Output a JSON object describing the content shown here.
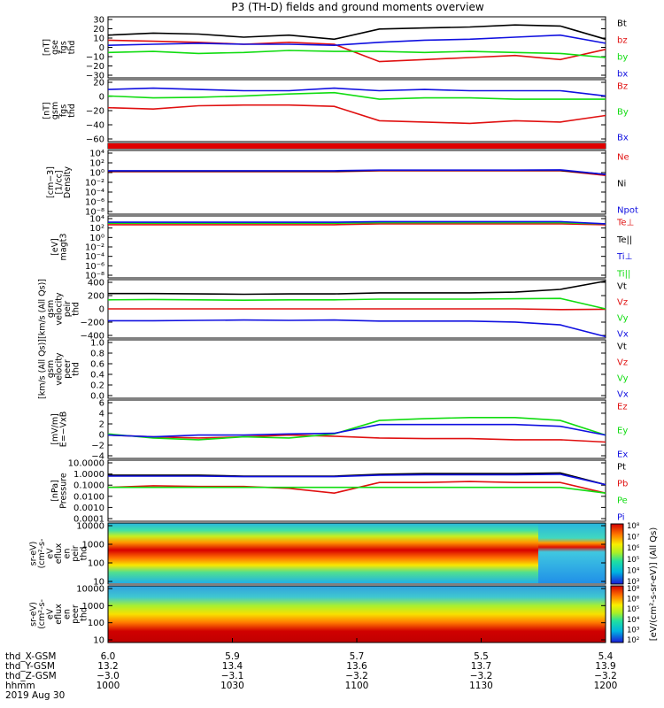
{
  "title": "P3 (TH-D) fields and ground moments overview",
  "colors": {
    "black": "#000000",
    "red": "#e01010",
    "green": "#10dc10",
    "blue": "#1010e0"
  },
  "panels": [
    {
      "ylabel": [
        "thd",
        "fgs",
        "gse",
        "[nT]"
      ],
      "ticks": [
        "30",
        "20",
        "10",
        "0",
        "−10",
        "−20",
        "−30"
      ],
      "legend": [
        {
          "text": "Bt",
          "color": "black"
        },
        {
          "text": "bz",
          "color": "red"
        },
        {
          "text": "by",
          "color": "green"
        },
        {
          "text": "bx",
          "color": "blue"
        }
      ]
    },
    {
      "ylabel": [
        "thd",
        "fgs",
        "gsm",
        "[nT]"
      ],
      "ticks": [
        "20",
        "0",
        "−20",
        "−40",
        "−60"
      ],
      "legend": [
        {
          "text": "Bz",
          "color": "red"
        },
        {
          "text": "By",
          "color": "green"
        },
        {
          "text": "Bx",
          "color": "blue"
        }
      ]
    },
    {
      "ylabel": [],
      "ticks": [],
      "legend": []
    },
    {
      "ylabel": [
        "Density",
        "[1/cc]",
        "[cm−3]"
      ],
      "ticks": [
        "10⁴",
        "10²",
        "10⁰",
        "10⁻²",
        "10⁻⁴",
        "10⁻⁶",
        "10⁻⁸"
      ],
      "legend": [
        {
          "text": "Ne",
          "color": "red"
        },
        {
          "text": "Ni",
          "color": "black"
        },
        {
          "text": "Npot",
          "color": "blue"
        }
      ]
    },
    {
      "ylabel": [
        "magt3",
        "[eV]"
      ],
      "ticks": [
        "10⁴",
        "10²",
        "10⁰",
        "10⁻²",
        "10⁻⁴",
        "10⁻⁶",
        "10⁻⁸"
      ],
      "legend": [
        {
          "text": "Te⊥",
          "color": "red"
        },
        {
          "text": "Te||",
          "color": "black"
        },
        {
          "text": "Ti⊥",
          "color": "blue"
        },
        {
          "text": "Ti||",
          "color": "green"
        }
      ]
    },
    {
      "ylabel": [
        "thd",
        "peir",
        "velocity",
        "gsm",
        "[km/s (All Qs)]"
      ],
      "ticks": [
        "400",
        "200",
        "0",
        "−200",
        "−400"
      ],
      "legend": [
        {
          "text": "Vt",
          "color": "black"
        },
        {
          "text": "Vz",
          "color": "red"
        },
        {
          "text": "Vy",
          "color": "green"
        },
        {
          "text": "Vx",
          "color": "blue"
        }
      ]
    },
    {
      "ylabel": [
        "thd",
        "peer",
        "velocity",
        "gsm",
        "[km/s (All Qs)]"
      ],
      "ticks": [
        "1.0",
        "0.8",
        "0.6",
        "0.4",
        "0.2",
        "0.0"
      ],
      "legend": [
        {
          "text": "Vt",
          "color": "black"
        },
        {
          "text": "Vz",
          "color": "red"
        },
        {
          "text": "Vy",
          "color": "green"
        },
        {
          "text": "Vx",
          "color": "blue"
        }
      ]
    },
    {
      "ylabel": [
        "E=−VxB",
        "[mV/m]"
      ],
      "ticks": [
        "6",
        "4",
        "2",
        "0",
        "−2",
        "−4"
      ],
      "legend": [
        {
          "text": "Ez",
          "color": "red"
        },
        {
          "text": "Ey",
          "color": "green"
        },
        {
          "text": "Ex",
          "color": "blue"
        }
      ]
    },
    {
      "ylabel": [
        "Pressure",
        "[nPa]"
      ],
      "ticks": [
        "10.0000",
        "1.0000",
        "0.1000",
        "0.0100",
        "0.0010",
        "0.0001"
      ],
      "legend": [
        {
          "text": "Pt",
          "color": "black"
        },
        {
          "text": "Pb",
          "color": "red"
        },
        {
          "text": "Pe",
          "color": "green"
        },
        {
          "text": "Pi",
          "color": "blue"
        }
      ]
    },
    {
      "ylabel": [
        "thd",
        "peir",
        "en",
        "eflux",
        "eV",
        "(cm²-s-",
        "sr-eV)"
      ],
      "ticks": [
        "10000",
        "1000",
        "100",
        "10"
      ],
      "legend": []
    },
    {
      "ylabel": [
        "thd",
        "peer",
        "en",
        "eflux",
        "eV",
        "(cm²-s-",
        "sr-eV)"
      ],
      "ticks": [
        "10000",
        "1000",
        "100",
        "10"
      ],
      "legend": []
    }
  ],
  "colorbars": [
    {
      "ticks": [
        "10⁸",
        "10⁷",
        "10⁶",
        "10⁵",
        "10⁴",
        "10³"
      ],
      "label": "[eV/(cm²-s-sr-eV)] (All Qs)"
    },
    {
      "ticks": [
        "10⁸",
        "10⁶",
        "10⁵",
        "10⁴",
        "10³",
        "10²"
      ],
      "label": "[eV/(cm²-s-sr-eV)] (All Qs)"
    }
  ],
  "footer": {
    "row_labels": [
      "thd_X-GSM",
      "thd_Y-GSM",
      "thd_Z-GSM",
      "hhmm",
      "2019 Aug 30"
    ],
    "columns": [
      [
        "6.0",
        "13.2",
        "−3.0",
        "1000"
      ],
      [
        "5.9",
        "13.4",
        "−3.1",
        "1030"
      ],
      [
        "5.7",
        "13.6",
        "−3.2",
        "1100"
      ],
      [
        "5.5",
        "13.7",
        "−3.2",
        "1130"
      ],
      [
        "5.4",
        "13.9",
        "−3.2",
        "1200"
      ]
    ]
  },
  "chart_data": {
    "type": "line",
    "title": "P3 (TH-D) fields and ground moments overview",
    "date": "2019 Aug 30",
    "x_range": [
      "10:00",
      "12:00"
    ],
    "xlabel": "hhmm",
    "x_ticks": [
      "1000",
      "1030",
      "1100",
      "1130",
      "1200"
    ],
    "panels": [
      {
        "name": "thd fgs gse [nT]",
        "ylim": [
          -30,
          30
        ],
        "series": [
          {
            "name": "Bt",
            "color": "black",
            "values": [
              12,
              14,
              13,
              10,
              12,
              8,
              18,
              19,
              20,
              22,
              21,
              8
            ]
          },
          {
            "name": "bz",
            "color": "red",
            "values": [
              7,
              6,
              5,
              3,
              5,
              3,
              -14,
              -12,
              -10,
              -8,
              -12,
              -2
            ]
          },
          {
            "name": "by",
            "color": "green",
            "values": [
              -5,
              -4,
              -6,
              -5,
              -3,
              -4,
              -4,
              -5,
              -4,
              -5,
              -6,
              -10
            ]
          },
          {
            "name": "bx",
            "color": "blue",
            "values": [
              2,
              3,
              4,
              3,
              3,
              2,
              5,
              7,
              8,
              10,
              12,
              4
            ]
          }
        ]
      },
      {
        "name": "thd fgs gsm [nT]",
        "ylim": [
          -70,
          25
        ],
        "series": [
          {
            "name": "Bz",
            "color": "red",
            "values": [
              -18,
              -20,
              -15,
              -14,
              -14,
              -16,
              -38,
              -40,
              -42,
              -38,
              -40,
              -30
            ]
          },
          {
            "name": "By",
            "color": "green",
            "values": [
              0,
              -3,
              -2,
              0,
              3,
              5,
              -5,
              -3,
              -3,
              -5,
              -5,
              -5
            ]
          },
          {
            "name": "Bx",
            "color": "blue",
            "values": [
              10,
              12,
              10,
              8,
              8,
              12,
              8,
              10,
              8,
              8,
              8,
              0
            ]
          }
        ]
      },
      {
        "name": "Density [1/cc]",
        "scale": "log",
        "ylim": [
          1e-08,
          10000.0
        ],
        "series": [
          {
            "name": "Ne",
            "color": "red",
            "values": [
              1,
              1,
              1,
              1,
              1,
              1,
              1.5,
              1.5,
              1.5,
              1.5,
              1.5,
              0.2
            ]
          },
          {
            "name": "Ni",
            "color": "black",
            "values": [
              1.2,
              1.2,
              1.2,
              1.2,
              1.2,
              1.2,
              1.8,
              1.8,
              1.8,
              1.8,
              1.8,
              0.3
            ]
          },
          {
            "name": "Npot",
            "color": "blue",
            "values": [
              1.5,
              1.5,
              1.5,
              1.5,
              1.5,
              1.5,
              2,
              2,
              2,
              2,
              2.2,
              0.3
            ]
          }
        ]
      },
      {
        "name": "magt3 [eV]",
        "scale": "log",
        "ylim": [
          1e-08,
          10000.0
        ],
        "series": [
          {
            "name": "Te⊥",
            "color": "red",
            "values": [
              200,
              200,
              200,
              200,
              200,
              200,
              300,
              300,
              300,
              300,
              300,
              200
            ]
          },
          {
            "name": "Ti||",
            "color": "green",
            "values": [
              400,
              400,
              400,
              400,
              400,
              400,
              500,
              500,
              500,
              500,
              500,
              300
            ]
          },
          {
            "name": "Ti⊥",
            "color": "blue",
            "values": [
              600,
              600,
              600,
              600,
              600,
              600,
              800,
              800,
              800,
              800,
              800,
              300
            ]
          }
        ]
      },
      {
        "name": "thd peir velocity gsm [km/s (All Qs)]",
        "ylim": [
          -420,
          420
        ],
        "series": [
          {
            "name": "Vt",
            "color": "black",
            "values": [
              220,
              220,
              215,
              210,
              215,
              215,
              230,
              230,
              230,
              240,
              280,
              400
            ]
          },
          {
            "name": "Vz",
            "color": "red",
            "values": [
              0,
              0,
              0,
              0,
              0,
              0,
              0,
              0,
              0,
              0,
              -10,
              -5
            ]
          },
          {
            "name": "Vy",
            "color": "green",
            "values": [
              130,
              135,
              130,
              125,
              130,
              130,
              140,
              140,
              140,
              145,
              150,
              0
            ]
          },
          {
            "name": "Vx",
            "color": "blue",
            "values": [
              -170,
              -170,
              -165,
              -160,
              -165,
              -160,
              -175,
              -175,
              -175,
              -190,
              -230,
              -400
            ]
          }
        ]
      },
      {
        "name": "thd peer velocity gsm [km/s (All Qs)]",
        "ylim": [
          0,
          1
        ],
        "series": []
      },
      {
        "name": "E=-VxB [mV/m]",
        "ylim": [
          -4,
          6
        ],
        "series": [
          {
            "name": "Ez",
            "color": "red",
            "values": [
              0,
              -0.3,
              -0.5,
              -0.3,
              0,
              -0.2,
              -0.5,
              -0.6,
              -0.6,
              -0.8,
              -0.8,
              -1.2
            ]
          },
          {
            "name": "Ey",
            "color": "green",
            "values": [
              0.2,
              -0.5,
              -0.8,
              -0.3,
              -0.5,
              0.2,
              2.5,
              2.8,
              3,
              3,
              2.5,
              0
            ]
          },
          {
            "name": "Ex",
            "color": "blue",
            "values": [
              0,
              -0.3,
              0,
              0,
              0.2,
              0.3,
              1.8,
              1.8,
              1.8,
              1.8,
              1.5,
              0
            ]
          }
        ]
      },
      {
        "name": "Pressure [nPa]",
        "scale": "log",
        "ylim": [
          0.0001,
          10
        ],
        "series": [
          {
            "name": "Pt",
            "color": "black",
            "values": [
              0.6,
              0.6,
              0.6,
              0.5,
              0.5,
              0.5,
              0.7,
              0.8,
              0.8,
              0.8,
              0.9,
              0.1
            ]
          },
          {
            "name": "Pb",
            "color": "red",
            "values": [
              0.06,
              0.08,
              0.07,
              0.07,
              0.05,
              0.02,
              0.15,
              0.15,
              0.18,
              0.15,
              0.15,
              0.02
            ]
          },
          {
            "name": "Pe",
            "color": "green",
            "values": [
              0.06,
              0.06,
              0.06,
              0.06,
              0.06,
              0.06,
              0.06,
              0.06,
              0.06,
              0.06,
              0.06,
              0.02
            ]
          },
          {
            "name": "Pi",
            "color": "blue",
            "values": [
              0.5,
              0.5,
              0.5,
              0.45,
              0.45,
              0.45,
              0.6,
              0.65,
              0.65,
              0.65,
              0.7,
              0.1
            ]
          }
        ]
      }
    ],
    "spectrograms": [
      {
        "name": "thd peir en eflux eV/(cm2-s-sr-eV)",
        "y_range": [
          5,
          20000
        ],
        "y_scale": "log",
        "z_scale": "log",
        "z_range": [
          1000,
          100000000
        ]
      },
      {
        "name": "thd peer en eflux eV/(cm2-s-sr-eV)",
        "y_range": [
          5,
          20000
        ],
        "y_scale": "log",
        "z_scale": "log",
        "z_range": [
          100,
          100000000
        ]
      }
    ]
  }
}
